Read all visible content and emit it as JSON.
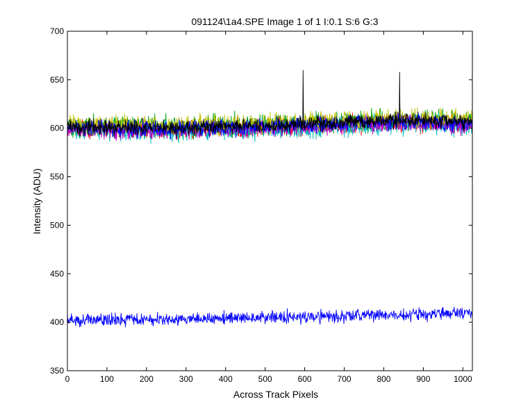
{
  "chart_data": {
    "type": "line",
    "title": "091124\\1a4.SPE  Image 1 of 1  I:0.1  S:6  G:3",
    "xlabel": "Across Track Pixels",
    "ylabel": "Intensity (ADU)",
    "xlim": [
      0,
      1024
    ],
    "ylim": [
      350,
      700
    ],
    "grid": false,
    "legend": "none",
    "x_ticks": [
      0,
      100,
      200,
      300,
      400,
      500,
      600,
      700,
      800,
      900,
      1000
    ],
    "y_ticks": [
      350,
      400,
      450,
      500,
      550,
      600,
      650,
      700
    ],
    "x_tick_labels": [
      "0",
      "100",
      "200",
      "300",
      "400",
      "500",
      "600",
      "700",
      "800",
      "900",
      "1000"
    ],
    "y_tick_labels": [
      "350",
      "400",
      "450",
      "500",
      "550",
      "600",
      "650",
      "700"
    ],
    "series": [
      {
        "color": "#ff0000",
        "x": [
          0,
          128,
          256,
          384,
          512,
          640,
          768,
          896,
          1024
        ],
        "y": [
          600,
          599,
          598,
          600,
          601,
          603,
          605,
          606,
          604
        ],
        "noise": 9
      },
      {
        "color": "#00a000",
        "x": [
          0,
          128,
          256,
          384,
          512,
          640,
          768,
          896,
          1024
        ],
        "y": [
          603,
          602,
          601,
          603,
          604,
          606,
          608,
          609,
          607
        ],
        "noise": 10
      },
      {
        "color": "#00bfbf",
        "x": [
          0,
          128,
          256,
          384,
          512,
          640,
          768,
          896,
          1024
        ],
        "y": [
          598,
          597,
          596,
          598,
          599,
          601,
          603,
          604,
          602
        ],
        "noise": 10
      },
      {
        "color": "#bf00bf",
        "x": [
          0,
          128,
          256,
          384,
          512,
          640,
          768,
          896,
          1024
        ],
        "y": [
          599,
          598,
          597,
          599,
          600,
          602,
          604,
          605,
          603
        ],
        "noise": 8
      },
      {
        "color": "#bfbf00",
        "x": [
          0,
          128,
          256,
          384,
          512,
          640,
          768,
          896,
          1024
        ],
        "y": [
          604,
          603,
          602,
          604,
          605,
          607,
          609,
          610,
          608
        ],
        "noise": 9
      },
      {
        "color": "#0000ff",
        "x": [
          0,
          128,
          256,
          384,
          512,
          640,
          768,
          896,
          1024
        ],
        "y": [
          601,
          600,
          599,
          601,
          602,
          604,
          606,
          607,
          605
        ],
        "noise": 8
      },
      {
        "color": "#000000",
        "x": [
          0,
          128,
          256,
          384,
          512,
          640,
          768,
          896,
          1024
        ],
        "y": [
          602,
          601,
          600,
          602,
          603,
          605,
          607,
          608,
          606
        ],
        "noise": 7,
        "spikes": [
          [
            596,
            660
          ],
          [
            840,
            658
          ]
        ]
      },
      {
        "color": "#0000ff",
        "x": [
          0,
          128,
          256,
          384,
          512,
          640,
          768,
          896,
          1024
        ],
        "y": [
          402,
          402,
          403,
          404,
          405,
          406,
          407,
          408,
          410
        ],
        "noise": 6
      }
    ]
  }
}
